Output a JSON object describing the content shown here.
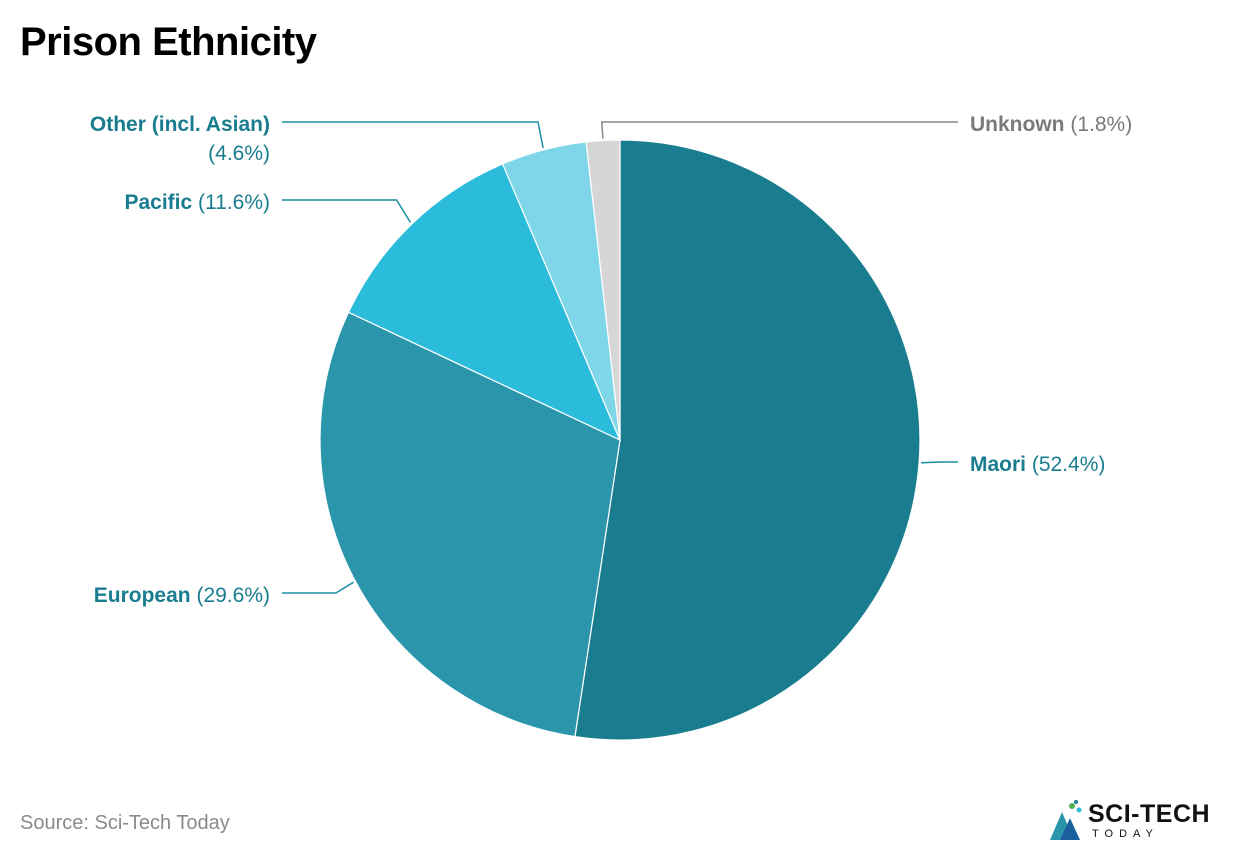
{
  "title": "Prison Ethnicity",
  "source": "Source: Sci-Tech Today",
  "logo": {
    "text": "SCI-TECH",
    "subtext": "TODAY"
  },
  "chart_data": {
    "type": "pie",
    "title": "Prison Ethnicity",
    "slices": [
      {
        "label": "Maori",
        "value": 52.4,
        "display": "(52.4%)",
        "color": "#1a7d8f",
        "label_color": "#1a7d8f"
      },
      {
        "label": "European",
        "value": 29.6,
        "display": "(29.6%)",
        "color": "#2b95ab",
        "label_color": "#1a7d8f"
      },
      {
        "label": "Pacific",
        "value": 11.6,
        "display": "(11.6%)",
        "color": "#2bbcdb",
        "label_color": "#1a7d8f"
      },
      {
        "label": "Other (incl. Asian)",
        "value": 4.6,
        "display": "(4.6%)",
        "color": "#7fd6e8",
        "label_color": "#1a7d8f"
      },
      {
        "label": "Unknown",
        "value": 1.8,
        "display": "(1.8%)",
        "color": "#d6d6d6",
        "label_color": "#7a7a7a"
      }
    ]
  }
}
